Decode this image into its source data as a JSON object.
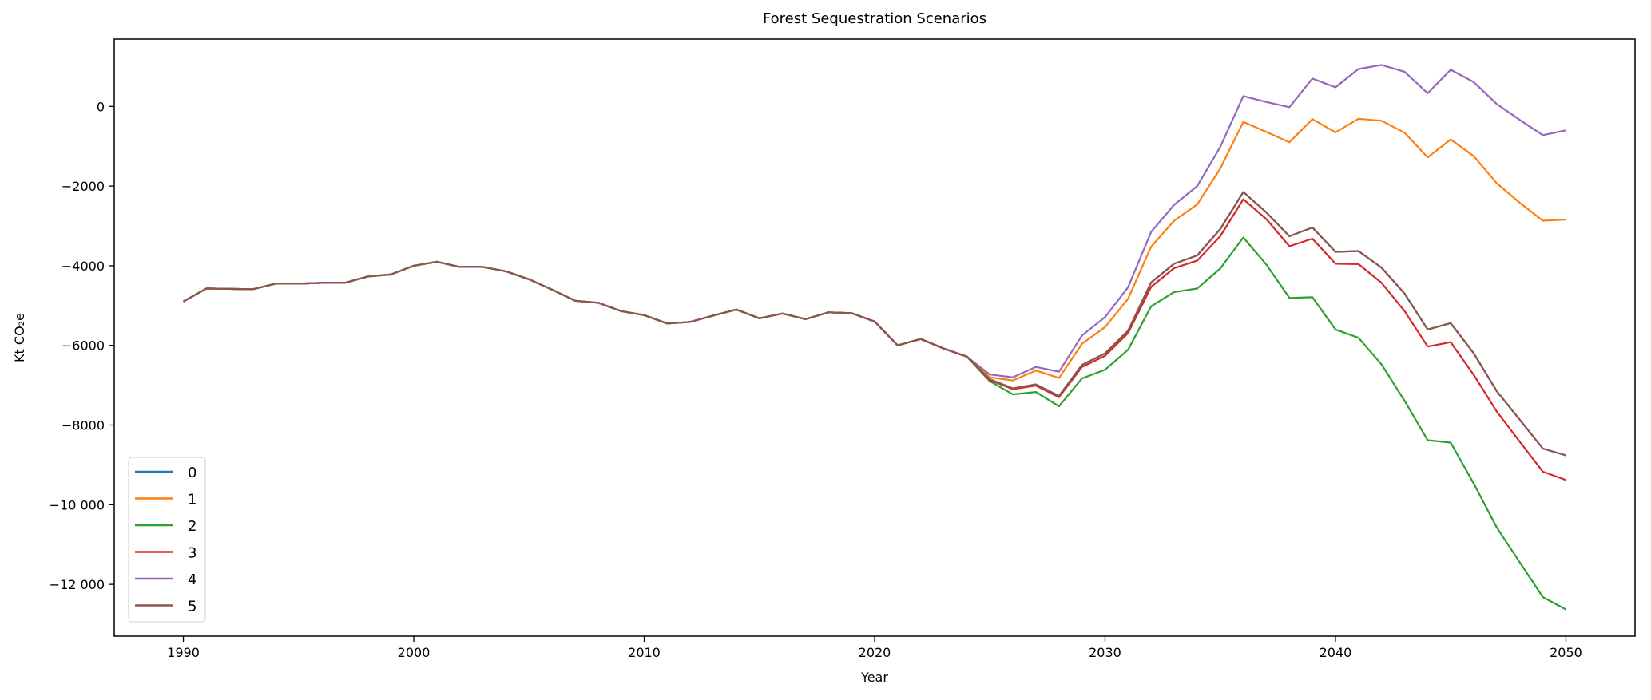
{
  "chart_data": {
    "type": "line",
    "title": "Forest Sequestration Scenarios",
    "xlabel": "Year",
    "ylabel": "Kt CO₂e",
    "xlim": [
      1987,
      2053
    ],
    "ylim": [
      -13300,
      1690
    ],
    "xticks": [
      1990,
      2000,
      2010,
      2020,
      2030,
      2040,
      2050
    ],
    "yticks": [
      0,
      -2000,
      -4000,
      -6000,
      -8000,
      -10000,
      -12000
    ],
    "ytick_labels": [
      "0",
      "−2000",
      "−4000",
      "−6000",
      "−8000",
      "−10 000",
      "−12 000"
    ],
    "grid": false,
    "legend_position": "lower-left",
    "history_years": [
      1990,
      1991,
      1992,
      1993,
      1994,
      1995,
      1996,
      1997,
      1998,
      1999,
      2000,
      2001,
      2002,
      2003,
      2004,
      2005,
      2006,
      2007,
      2008,
      2009,
      2010,
      2011,
      2012,
      2013,
      2014,
      2015,
      2016,
      2017,
      2018,
      2019,
      2020,
      2021,
      2022,
      2023,
      2024
    ],
    "history_values": [
      -4900,
      -4570,
      -4580,
      -4590,
      -4450,
      -4450,
      -4430,
      -4430,
      -4270,
      -4220,
      -4000,
      -3900,
      -4030,
      -4030,
      -4140,
      -4340,
      -4600,
      -4880,
      -4930,
      -5140,
      -5240,
      -5450,
      -5410,
      -5250,
      -5100,
      -5320,
      -5200,
      -5340,
      -5170,
      -5190,
      -5400,
      -6000,
      -5840,
      -6080,
      -6280
    ],
    "projection_years": [
      2025,
      2026,
      2027,
      2028,
      2029,
      2030,
      2031,
      2032,
      2033,
      2034,
      2035,
      2036,
      2037,
      2038,
      2039,
      2040,
      2041,
      2042,
      2043,
      2044,
      2045,
      2046,
      2047,
      2048,
      2049,
      2050
    ],
    "series": [
      {
        "name": "0",
        "color": "#1f77b4",
        "values": [
          -6850,
          -7080,
          -6980,
          -7270,
          -6490,
          -6200,
          -5630,
          -4420,
          -3950,
          -3740,
          -3080,
          -2150,
          -2660,
          -3260,
          -3040,
          -3650,
          -3630,
          -4050,
          -4700,
          -5600,
          -5440,
          -6200,
          -7150,
          -7870,
          -8590,
          -8760
        ]
      },
      {
        "name": "1",
        "color": "#ff7f0e",
        "values": [
          -6800,
          -6880,
          -6630,
          -6820,
          -5960,
          -5540,
          -4830,
          -3520,
          -2870,
          -2460,
          -1560,
          -390,
          -640,
          -900,
          -320,
          -650,
          -310,
          -360,
          -660,
          -1280,
          -830,
          -1250,
          -1930,
          -2420,
          -2870,
          -2840
        ]
      },
      {
        "name": "2",
        "color": "#2ca02c",
        "values": [
          -6900,
          -7230,
          -7170,
          -7530,
          -6830,
          -6610,
          -6110,
          -5020,
          -4660,
          -4570,
          -4070,
          -3290,
          -3970,
          -4810,
          -4790,
          -5600,
          -5810,
          -6480,
          -7390,
          -8380,
          -8440,
          -9470,
          -10570,
          -11450,
          -12320,
          -12630
        ]
      },
      {
        "name": "3",
        "color": "#d62728",
        "values": [
          -6870,
          -7100,
          -7010,
          -7300,
          -6540,
          -6260,
          -5690,
          -4530,
          -4060,
          -3870,
          -3260,
          -2330,
          -2830,
          -3510,
          -3320,
          -3950,
          -3960,
          -4430,
          -5140,
          -6030,
          -5920,
          -6740,
          -7660,
          -8420,
          -9170,
          -9380
        ]
      },
      {
        "name": "4",
        "color": "#9467bd",
        "values": [
          -6730,
          -6800,
          -6540,
          -6660,
          -5750,
          -5290,
          -4540,
          -3150,
          -2470,
          -2000,
          -1020,
          260,
          110,
          -20,
          700,
          480,
          940,
          1040,
          870,
          330,
          920,
          610,
          60,
          -340,
          -720,
          -600
        ]
      },
      {
        "name": "5",
        "color": "#8c564b",
        "values": [
          -6850,
          -7080,
          -6980,
          -7270,
          -6490,
          -6200,
          -5630,
          -4420,
          -3950,
          -3740,
          -3080,
          -2150,
          -2660,
          -3260,
          -3040,
          -3650,
          -3630,
          -4050,
          -4700,
          -5600,
          -5440,
          -6200,
          -7150,
          -7870,
          -8590,
          -8760
        ]
      }
    ]
  }
}
